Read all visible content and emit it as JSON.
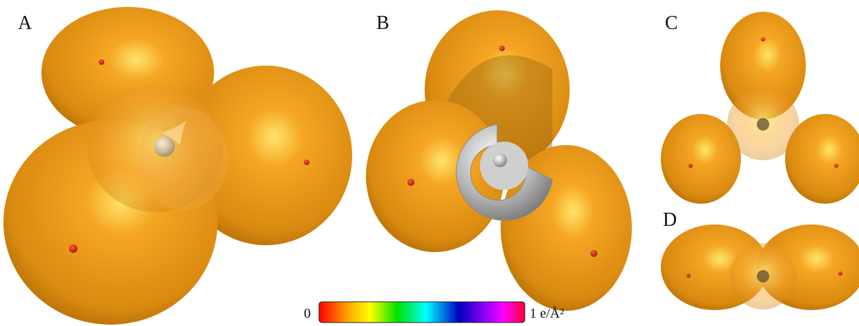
{
  "panels": [
    {
      "label": "A"
    },
    {
      "label": "B"
    },
    {
      "label": "C"
    },
    {
      "label": "D"
    }
  ],
  "colorbar": {
    "min_label": "0",
    "max_label": "1 e/Å²"
  }
}
